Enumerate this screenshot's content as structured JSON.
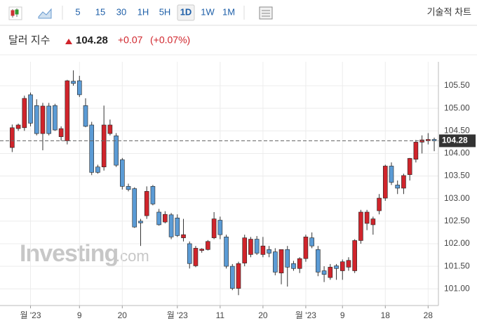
{
  "toolbar": {
    "intervals": [
      "5",
      "15",
      "30",
      "1H",
      "5H",
      "1D",
      "1W",
      "1M"
    ],
    "selected_index": 5,
    "technical": "기술적 차트"
  },
  "chart_data": {
    "type": "candlestick",
    "title": "달러 지수",
    "last": 104.28,
    "change": {
      "value": 0.07,
      "label": "+0.07"
    },
    "change_percent": {
      "value": 0.07,
      "label": "(+0.07%)"
    },
    "watermark": {
      "brand": "Investing",
      "suffix": ".com"
    },
    "up_color": "#d0242b",
    "down_color": "#5b9bd5",
    "ylim": [
      100.63,
      106.03
    ],
    "yticks": [
      {
        "value": 101,
        "label": "101.00"
      },
      {
        "value": 101.5,
        "label": "101.50"
      },
      {
        "value": 102,
        "label": "102.00"
      },
      {
        "value": 102.5,
        "label": "102.50"
      },
      {
        "value": 103,
        "label": "103.00"
      },
      {
        "value": 103.5,
        "label": "103.50"
      },
      {
        "value": 104,
        "label": "104.00"
      },
      {
        "value": 104.5,
        "label": "104.50"
      },
      {
        "value": 105,
        "label": "105.00"
      },
      {
        "value": 105.5,
        "label": "105.50"
      }
    ],
    "grid": true,
    "categories": [
      null,
      null,
      null,
      "월 '23",
      null,
      null,
      null,
      null,
      null,
      null,
      null,
      "9",
      null,
      null,
      null,
      null,
      null,
      null,
      "20",
      null,
      null,
      null,
      null,
      null,
      null,
      null,
      null,
      "월 '23",
      null,
      null,
      null,
      null,
      null,
      null,
      "11",
      null,
      null,
      null,
      null,
      null,
      null,
      "20",
      null,
      null,
      null,
      null,
      null,
      null,
      "월 '23",
      null,
      null,
      null,
      null,
      null,
      "9",
      null,
      null,
      null,
      null,
      null,
      null,
      "18",
      null,
      null,
      null,
      null,
      null,
      null,
      "28",
      null
    ],
    "open": [
      104.13,
      104.55,
      104.57,
      105.3,
      105.06,
      104.44,
      105.05,
      105.06,
      104.37,
      104.28,
      105.6,
      105.61,
      105.06,
      104.63,
      103.7,
      103.7,
      104.44,
      104.39,
      103.86,
      103.27,
      103.22,
      102.5,
      102.62,
      103.27,
      102.7,
      102.48,
      102.64,
      102.57,
      102.13,
      102.0,
      101.51,
      101.85,
      101.87,
      102.13,
      102.52,
      102.15,
      101.5,
      101.01,
      101.57,
      101.76,
      102.1,
      101.76,
      101.87,
      101.82,
      101.35,
      101.87,
      101.56,
      101.45,
      101.67,
      102.13,
      101.87,
      101.4,
      101.25,
      101.51,
      101.4,
      101.48,
      101.4,
      102.07,
      102.45,
      102.42,
      102.73,
      103.01,
      103.72,
      103.3,
      103.23,
      103.53,
      103.87,
      104.25,
      104.28,
      104.31
    ],
    "high": [
      104.64,
      104.66,
      105.28,
      105.35,
      105.2,
      105.12,
      105.12,
      105.1,
      104.6,
      105.63,
      105.84,
      105.72,
      105.22,
      104.7,
      103.75,
      105.06,
      104.75,
      104.45,
      103.9,
      103.33,
      103.25,
      102.55,
      103.27,
      103.3,
      102.77,
      102.72,
      102.68,
      102.65,
      102.55,
      102.05,
      101.95,
      101.9,
      102.08,
      102.7,
      102.6,
      102.2,
      101.55,
      101.6,
      102.2,
      102.15,
      102.17,
      102.15,
      101.95,
      101.9,
      101.85,
      101.95,
      101.62,
      101.7,
      102.2,
      102.25,
      101.95,
      101.5,
      101.55,
      101.55,
      101.65,
      101.7,
      102.1,
      102.75,
      102.75,
      102.6,
      103.1,
      103.75,
      103.8,
      103.4,
      103.55,
      103.9,
      104.3,
      104.4,
      104.45,
      104.35
    ],
    "low": [
      104.03,
      104.5,
      104.5,
      104.6,
      104.4,
      104.07,
      104.4,
      104.5,
      104.28,
      104.2,
      105.5,
      105.25,
      104.58,
      103.52,
      103.55,
      103.62,
      104.4,
      103.7,
      103.2,
      103.16,
      102.35,
      101.95,
      102.55,
      102.85,
      102.4,
      102.45,
      102.1,
      102.15,
      102.05,
      101.45,
      101.48,
      101.8,
      101.85,
      102.1,
      102.1,
      101.45,
      100.97,
      100.86,
      101.5,
      101.7,
      101.75,
      101.7,
      101.7,
      101.3,
      101.1,
      101.05,
      101.4,
      101.35,
      101.6,
      101.9,
      101.28,
      101.15,
      101.2,
      101.2,
      101.2,
      101.4,
      101.35,
      102.0,
      102.3,
      102.2,
      102.65,
      102.95,
      103.3,
      103.1,
      103.1,
      103.4,
      103.8,
      104.0,
      104.2,
      104.05
    ],
    "close": [
      104.57,
      104.63,
      105.22,
      104.67,
      104.44,
      105.05,
      104.44,
      104.52,
      104.55,
      105.61,
      105.55,
      105.3,
      104.6,
      103.58,
      103.58,
      104.63,
      104.63,
      103.74,
      103.27,
      103.2,
      102.37,
      102.46,
      103.16,
      102.88,
      102.42,
      102.65,
      102.15,
      102.18,
      102.2,
      101.56,
      101.9,
      101.88,
      102.05,
      102.55,
      102.2,
      101.5,
      101.01,
      101.56,
      102.13,
      102.1,
      101.79,
      101.95,
      101.79,
      101.37,
      101.87,
      101.48,
      101.45,
      101.67,
      102.15,
      101.95,
      101.37,
      101.32,
      101.48,
      101.45,
      101.6,
      101.63,
      102.07,
      102.7,
      102.7,
      102.55,
      103.01,
      103.72,
      103.36,
      103.23,
      103.51,
      103.89,
      104.25,
      104.3,
      104.31,
      104.28
    ]
  }
}
